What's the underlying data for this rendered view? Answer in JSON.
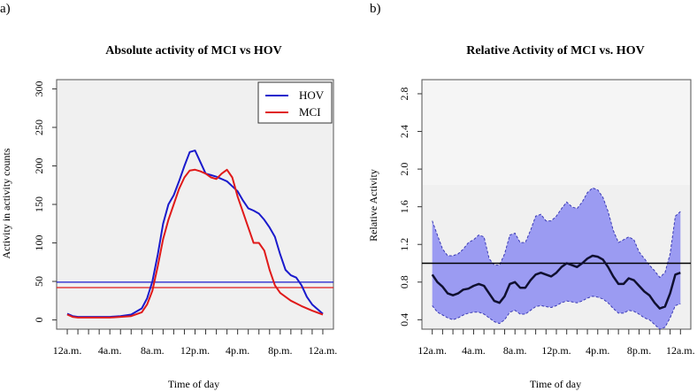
{
  "figure": {
    "panel_a_label": "a)",
    "panel_b_label": "b)"
  },
  "colors": {
    "hov": "#1a1acc",
    "mci": "#e01a1a",
    "band_fill": "#9b9bf2",
    "band_edge": "#3a3ab5",
    "ratio_line": "#101030",
    "plot_bg": "#f0f0f0",
    "plot_bg_upper": "#f5f5f5"
  },
  "chart_data": [
    {
      "type": "line",
      "title": "Absolute activity of MCI vs HOV",
      "xlabel": "Time of day",
      "ylabel": "Activity in activity counts",
      "x_tick_labels": [
        "12a.m.",
        "4a.m.",
        "8a.m.",
        "12p.m.",
        "4p.m.",
        "8p.m.",
        "12a.m."
      ],
      "x_tick_hours": [
        0,
        4,
        8,
        12,
        16,
        20,
        24
      ],
      "xlim": [
        -1,
        25
      ],
      "y_ticks": [
        0,
        50,
        100,
        150,
        200,
        250,
        300
      ],
      "ylim": [
        -12,
        312
      ],
      "legend": {
        "position": "top-right",
        "entries": [
          "HOV",
          "MCI"
        ]
      },
      "series": [
        {
          "name": "HOV",
          "x": [
            0,
            0.5,
            1,
            2,
            3,
            4,
            5,
            6,
            7,
            7.5,
            8,
            8.5,
            9,
            9.5,
            10,
            10.5,
            11,
            11.5,
            12,
            12.5,
            13,
            13.5,
            14,
            15,
            16,
            16.5,
            17,
            17.5,
            18,
            18.5,
            19,
            19.5,
            20,
            20.5,
            21,
            21.5,
            22,
            22.5,
            23,
            24
          ],
          "values": [
            8,
            5,
            4,
            4,
            4,
            4,
            5,
            7,
            15,
            28,
            50,
            85,
            125,
            150,
            162,
            180,
            200,
            218,
            220,
            205,
            190,
            188,
            186,
            180,
            167,
            155,
            145,
            142,
            138,
            130,
            120,
            108,
            85,
            65,
            58,
            55,
            45,
            30,
            20,
            8
          ]
        },
        {
          "name": "MCI",
          "x": [
            0,
            0.5,
            1,
            2,
            3,
            4,
            5,
            6,
            7,
            7.5,
            8,
            8.5,
            9,
            9.5,
            10,
            10.5,
            11,
            11.5,
            12,
            12.5,
            13,
            13.5,
            14,
            14.5,
            15,
            15.5,
            16,
            16.5,
            17,
            17.5,
            18,
            18.5,
            19,
            19.5,
            20,
            20.5,
            21,
            22,
            23,
            24
          ],
          "values": [
            7,
            4,
            3,
            3,
            3,
            3,
            4,
            5,
            10,
            20,
            38,
            70,
            105,
            130,
            150,
            170,
            185,
            194,
            195,
            193,
            190,
            185,
            183,
            190,
            195,
            185,
            160,
            140,
            120,
            100,
            100,
            90,
            65,
            45,
            35,
            30,
            25,
            18,
            12,
            7
          ]
        }
      ],
      "reference_lines": [
        {
          "series": "HOV",
          "y": 49
        },
        {
          "series": "MCI",
          "y": 42
        }
      ]
    },
    {
      "type": "line",
      "title": "Relative Activity of MCI vs. HOV",
      "xlabel": "Time of day",
      "ylabel": "Relative Activity",
      "x_tick_labels": [
        "12a.m.",
        "4a.m.",
        "8a.m.",
        "12p.m.",
        "4p.m.",
        "8p.m.",
        "12a.m."
      ],
      "x_tick_hours": [
        0,
        4,
        8,
        12,
        16,
        20,
        24
      ],
      "xlim": [
        -1,
        25
      ],
      "y_ticks": [
        0.4,
        0.8,
        1.2,
        1.6,
        2.0,
        2.4,
        2.8
      ],
      "ylim": [
        0.3,
        2.95
      ],
      "shaded_upper_region_from": 1.83,
      "reference_line": 1.0,
      "series": [
        {
          "name": "Relative Activity",
          "x": [
            0,
            0.5,
            1,
            1.5,
            2,
            2.5,
            3,
            3.5,
            4,
            4.5,
            5,
            5.5,
            6,
            6.5,
            7,
            7.5,
            8,
            8.5,
            9,
            9.5,
            10,
            10.5,
            11,
            11.5,
            12,
            12.5,
            13,
            13.5,
            14,
            14.5,
            15,
            15.5,
            16,
            16.5,
            17,
            17.5,
            18,
            18.5,
            19,
            19.5,
            20,
            20.5,
            21,
            21.5,
            22,
            22.5,
            23,
            23.5,
            24
          ],
          "values": [
            0.88,
            0.8,
            0.75,
            0.68,
            0.66,
            0.68,
            0.72,
            0.73,
            0.76,
            0.78,
            0.76,
            0.68,
            0.6,
            0.58,
            0.65,
            0.78,
            0.8,
            0.74,
            0.74,
            0.82,
            0.88,
            0.9,
            0.88,
            0.86,
            0.9,
            0.96,
            1.0,
            0.98,
            0.96,
            1.0,
            1.05,
            1.08,
            1.07,
            1.04,
            0.96,
            0.86,
            0.78,
            0.78,
            0.84,
            0.82,
            0.76,
            0.7,
            0.66,
            0.58,
            0.52,
            0.54,
            0.68,
            0.88,
            0.9
          ]
        }
      ],
      "band": {
        "x": [
          0,
          0.5,
          1,
          1.5,
          2,
          2.5,
          3,
          3.5,
          4,
          4.5,
          5,
          5.5,
          6,
          6.5,
          7,
          7.5,
          8,
          8.5,
          9,
          9.5,
          10,
          10.5,
          11,
          11.5,
          12,
          12.5,
          13,
          13.5,
          14,
          14.5,
          15,
          15.5,
          16,
          16.5,
          17,
          17.5,
          18,
          18.5,
          19,
          19.5,
          20,
          20.5,
          21,
          21.5,
          22,
          22.5,
          23,
          23.5,
          24
        ],
        "upper": [
          1.45,
          1.3,
          1.15,
          1.08,
          1.08,
          1.1,
          1.15,
          1.22,
          1.25,
          1.3,
          1.28,
          1.05,
          0.98,
          0.98,
          1.1,
          1.3,
          1.32,
          1.22,
          1.22,
          1.35,
          1.5,
          1.52,
          1.45,
          1.45,
          1.5,
          1.58,
          1.65,
          1.6,
          1.58,
          1.65,
          1.75,
          1.8,
          1.78,
          1.7,
          1.55,
          1.35,
          1.22,
          1.25,
          1.28,
          1.25,
          1.12,
          1.05,
          0.98,
          0.92,
          0.85,
          0.9,
          1.1,
          1.5,
          1.55
        ],
        "lower": [
          0.55,
          0.48,
          0.45,
          0.42,
          0.4,
          0.42,
          0.45,
          0.47,
          0.48,
          0.48,
          0.46,
          0.42,
          0.38,
          0.36,
          0.4,
          0.48,
          0.5,
          0.46,
          0.46,
          0.5,
          0.54,
          0.55,
          0.54,
          0.53,
          0.55,
          0.58,
          0.6,
          0.59,
          0.58,
          0.6,
          0.63,
          0.65,
          0.64,
          0.62,
          0.58,
          0.52,
          0.47,
          0.47,
          0.5,
          0.49,
          0.46,
          0.42,
          0.4,
          0.35,
          0.3,
          0.32,
          0.42,
          0.55,
          0.57
        ]
      }
    }
  ]
}
